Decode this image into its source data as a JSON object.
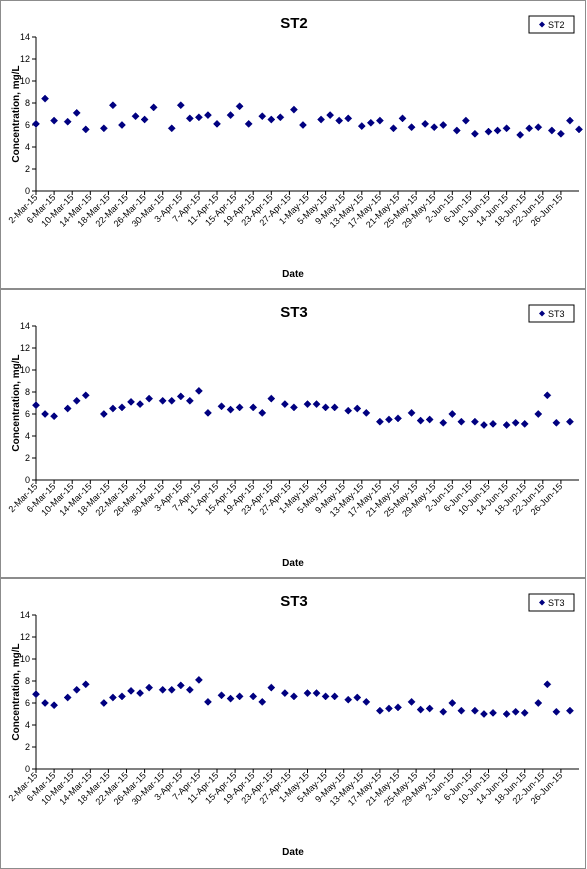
{
  "chart_data": [
    {
      "type": "scatter",
      "title": "ST2",
      "xlabel": "Date",
      "ylabel": "Concentration, mg/L",
      "ylim": [
        0,
        14
      ],
      "yticks": [
        0,
        2,
        4,
        6,
        8,
        10,
        12,
        14
      ],
      "xlim": [
        "2015-03-02",
        "2015-06-30"
      ],
      "xticks": [
        "2-Mar-15",
        "6-Mar-15",
        "10-Mar-15",
        "14-Mar-15",
        "18-Mar-15",
        "22-Mar-15",
        "26-Mar-15",
        "30-Mar-15",
        "3-Apr-15",
        "7-Apr-15",
        "11-Apr-15",
        "15-Apr-15",
        "19-Apr-15",
        "23-Apr-15",
        "27-Apr-15",
        "1-May-15",
        "5-May-15",
        "9-May-15",
        "13-May-15",
        "17-May-15",
        "21-May-15",
        "25-May-15",
        "29-May-15",
        "2-Jun-15",
        "6-Jun-15",
        "10-Jun-15",
        "14-Jun-15",
        "18-Jun-15",
        "22-Jun-15",
        "26-Jun-15"
      ],
      "grid": false,
      "legend_position": "top-right",
      "marker_color": "#000080",
      "series": [
        {
          "name": "ST2",
          "x": [
            "2015-03-02",
            "2015-03-04",
            "2015-03-06",
            "2015-03-09",
            "2015-03-11",
            "2015-03-13",
            "2015-03-17",
            "2015-03-19",
            "2015-03-21",
            "2015-03-24",
            "2015-03-26",
            "2015-03-28",
            "2015-04-01",
            "2015-04-03",
            "2015-04-05",
            "2015-04-07",
            "2015-04-09",
            "2015-04-11",
            "2015-04-14",
            "2015-04-16",
            "2015-04-18",
            "2015-04-21",
            "2015-04-23",
            "2015-04-25",
            "2015-04-28",
            "2015-04-30",
            "2015-05-04",
            "2015-05-06",
            "2015-05-08",
            "2015-05-10",
            "2015-05-13",
            "2015-05-15",
            "2015-05-17",
            "2015-05-20",
            "2015-05-22",
            "2015-05-24",
            "2015-05-27",
            "2015-05-29",
            "2015-05-31",
            "2015-06-03",
            "2015-06-05",
            "2015-06-07",
            "2015-06-10",
            "2015-06-12",
            "2015-06-14",
            "2015-06-17",
            "2015-06-19",
            "2015-06-21",
            "2015-06-24",
            "2015-06-26",
            "2015-06-28",
            "2015-06-30"
          ],
          "y": [
            6.1,
            8.4,
            6.4,
            6.3,
            7.1,
            5.6,
            5.7,
            7.8,
            6.0,
            6.8,
            6.5,
            7.6,
            5.7,
            7.8,
            6.6,
            6.7,
            6.9,
            6.1,
            6.9,
            7.7,
            6.1,
            6.8,
            6.5,
            6.7,
            7.4,
            6.0,
            6.5,
            6.9,
            6.4,
            6.6,
            5.9,
            6.2,
            6.4,
            5.7,
            6.6,
            5.8,
            6.1,
            5.8,
            6.0,
            5.5,
            6.4,
            5.2,
            5.4,
            5.5,
            5.7,
            5.1,
            5.7,
            5.8,
            5.5,
            5.2,
            6.4,
            5.6
          ]
        }
      ]
    },
    {
      "type": "scatter",
      "title": "ST3",
      "xlabel": "Date",
      "ylabel": "Concentration, mg/L",
      "ylim": [
        0,
        14
      ],
      "yticks": [
        0,
        2,
        4,
        6,
        8,
        10,
        12,
        14
      ],
      "xlim": [
        "2015-03-02",
        "2015-06-30"
      ],
      "xticks": [
        "2-Mar-15",
        "6-Mar-15",
        "10-Mar-15",
        "14-Mar-15",
        "18-Mar-15",
        "22-Mar-15",
        "26-Mar-15",
        "30-Mar-15",
        "3-Apr-15",
        "7-Apr-15",
        "11-Apr-15",
        "15-Apr-15",
        "19-Apr-15",
        "23-Apr-15",
        "27-Apr-15",
        "1-May-15",
        "5-May-15",
        "9-May-15",
        "13-May-15",
        "17-May-15",
        "21-May-15",
        "25-May-15",
        "29-May-15",
        "2-Jun-15",
        "6-Jun-15",
        "10-Jun-15",
        "14-Jun-15",
        "18-Jun-15",
        "22-Jun-15",
        "26-Jun-15"
      ],
      "grid": false,
      "legend_position": "top-right",
      "marker_color": "#000080",
      "series": [
        {
          "name": "ST3",
          "x": [
            "2015-03-02",
            "2015-03-04",
            "2015-03-06",
            "2015-03-09",
            "2015-03-11",
            "2015-03-13",
            "2015-03-17",
            "2015-03-19",
            "2015-03-21",
            "2015-03-23",
            "2015-03-25",
            "2015-03-27",
            "2015-03-30",
            "2015-04-01",
            "2015-04-03",
            "2015-04-05",
            "2015-04-07",
            "2015-04-09",
            "2015-04-12",
            "2015-04-14",
            "2015-04-16",
            "2015-04-19",
            "2015-04-21",
            "2015-04-23",
            "2015-04-26",
            "2015-04-28",
            "2015-05-01",
            "2015-05-03",
            "2015-05-05",
            "2015-05-07",
            "2015-05-10",
            "2015-05-12",
            "2015-05-14",
            "2015-05-17",
            "2015-05-19",
            "2015-05-21",
            "2015-05-24",
            "2015-05-26",
            "2015-05-28",
            "2015-05-31",
            "2015-06-02",
            "2015-06-04",
            "2015-06-07",
            "2015-06-09",
            "2015-06-11",
            "2015-06-14",
            "2015-06-16",
            "2015-06-18",
            "2015-06-21",
            "2015-06-23",
            "2015-06-25",
            "2015-06-28"
          ],
          "y": [
            6.8,
            6.0,
            5.8,
            6.5,
            7.2,
            7.7,
            6.0,
            6.5,
            6.6,
            7.1,
            6.9,
            7.4,
            7.2,
            7.2,
            7.6,
            7.2,
            8.1,
            6.1,
            6.7,
            6.4,
            6.6,
            6.6,
            6.1,
            7.4,
            6.9,
            6.6,
            6.9,
            6.9,
            6.6,
            6.6,
            6.3,
            6.5,
            6.1,
            5.3,
            5.5,
            5.6,
            6.1,
            5.4,
            5.5,
            5.2,
            6.0,
            5.3,
            5.3,
            5.0,
            5.1,
            5.0,
            5.2,
            5.1,
            6.0,
            7.7,
            5.2,
            5.3
          ]
        }
      ]
    },
    {
      "type": "scatter",
      "title": "ST3",
      "xlabel": "Date",
      "ylabel": "Concentration, mg/L",
      "ylim": [
        0,
        14
      ],
      "yticks": [
        0,
        2,
        4,
        6,
        8,
        10,
        12,
        14
      ],
      "xlim": [
        "2015-03-02",
        "2015-06-30"
      ],
      "xticks": [
        "2-Mar-15",
        "6-Mar-15",
        "10-Mar-15",
        "14-Mar-15",
        "18-Mar-15",
        "22-Mar-15",
        "26-Mar-15",
        "30-Mar-15",
        "3-Apr-15",
        "7-Apr-15",
        "11-Apr-15",
        "15-Apr-15",
        "19-Apr-15",
        "23-Apr-15",
        "27-Apr-15",
        "1-May-15",
        "5-May-15",
        "9-May-15",
        "13-May-15",
        "17-May-15",
        "21-May-15",
        "25-May-15",
        "29-May-15",
        "2-Jun-15",
        "6-Jun-15",
        "10-Jun-15",
        "14-Jun-15",
        "18-Jun-15",
        "22-Jun-15",
        "26-Jun-15"
      ],
      "grid": false,
      "legend_position": "top-right",
      "marker_color": "#000080",
      "series": [
        {
          "name": "ST3",
          "x": [
            "2015-03-02",
            "2015-03-04",
            "2015-03-06",
            "2015-03-09",
            "2015-03-11",
            "2015-03-13",
            "2015-03-17",
            "2015-03-19",
            "2015-03-21",
            "2015-03-23",
            "2015-03-25",
            "2015-03-27",
            "2015-03-30",
            "2015-04-01",
            "2015-04-03",
            "2015-04-05",
            "2015-04-07",
            "2015-04-09",
            "2015-04-12",
            "2015-04-14",
            "2015-04-16",
            "2015-04-19",
            "2015-04-21",
            "2015-04-23",
            "2015-04-26",
            "2015-04-28",
            "2015-05-01",
            "2015-05-03",
            "2015-05-05",
            "2015-05-07",
            "2015-05-10",
            "2015-05-12",
            "2015-05-14",
            "2015-05-17",
            "2015-05-19",
            "2015-05-21",
            "2015-05-24",
            "2015-05-26",
            "2015-05-28",
            "2015-05-31",
            "2015-06-02",
            "2015-06-04",
            "2015-06-07",
            "2015-06-09",
            "2015-06-11",
            "2015-06-14",
            "2015-06-16",
            "2015-06-18",
            "2015-06-21",
            "2015-06-23",
            "2015-06-25",
            "2015-06-28"
          ],
          "y": [
            6.8,
            6.0,
            5.8,
            6.5,
            7.2,
            7.7,
            6.0,
            6.5,
            6.6,
            7.1,
            6.9,
            7.4,
            7.2,
            7.2,
            7.6,
            7.2,
            8.1,
            6.1,
            6.7,
            6.4,
            6.6,
            6.6,
            6.1,
            7.4,
            6.9,
            6.6,
            6.9,
            6.9,
            6.6,
            6.6,
            6.3,
            6.5,
            6.1,
            5.3,
            5.5,
            5.6,
            6.1,
            5.4,
            5.5,
            5.2,
            6.0,
            5.3,
            5.3,
            5.0,
            5.1,
            5.0,
            5.2,
            5.1,
            6.0,
            7.7,
            5.2,
            5.3
          ]
        }
      ]
    }
  ]
}
